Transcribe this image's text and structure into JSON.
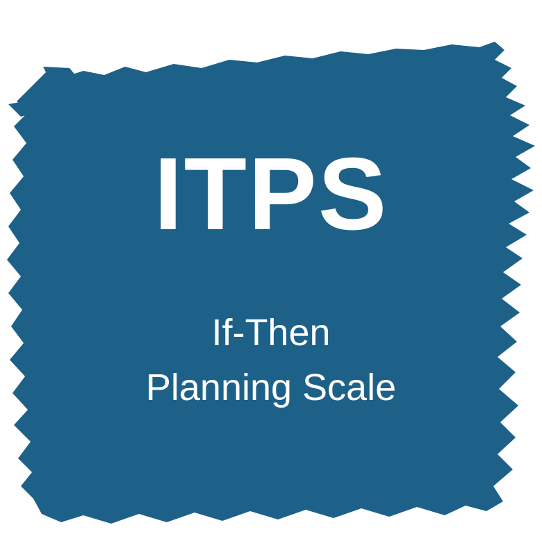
{
  "logo": {
    "title": "ITPS",
    "subtitle_line1": "If-Then",
    "subtitle_line2": "Planning Scale",
    "colors": {
      "background": "#ffffff",
      "paint": "#1d6189",
      "text": "#ffffff"
    }
  }
}
